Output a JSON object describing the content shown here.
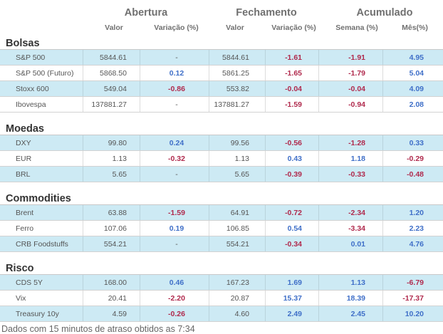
{
  "header": {
    "groups": [
      "Abertura",
      "Fechamento",
      "Acumulado"
    ],
    "columns": [
      "Valor",
      "Variação (%)",
      "Valor",
      "Variação (%)",
      "Semana (%)",
      "Mês(%)"
    ]
  },
  "sections": [
    {
      "title": "Bolsas",
      "rows": [
        {
          "name": "S&P 500",
          "open_value": "5844.61",
          "open_change": "-",
          "close_value": "5844.61",
          "close_change": "-1.61",
          "week": "-1.91",
          "month": "4.95"
        },
        {
          "name": "S&P 500 (Futuro)",
          "open_value": "5868.50",
          "open_change": "0.12",
          "close_value": "5861.25",
          "close_change": "-1.65",
          "week": "-1.79",
          "month": "5.04"
        },
        {
          "name": "Stoxx 600",
          "open_value": "549.04",
          "open_change": "-0.86",
          "close_value": "553.82",
          "close_change": "-0.04",
          "week": "-0.04",
          "month": "4.09"
        },
        {
          "name": "Ibovespa",
          "open_value": "137881.27",
          "open_change": "-",
          "close_value": "137881.27",
          "close_change": "-1.59",
          "week": "-0.94",
          "month": "2.08"
        }
      ]
    },
    {
      "title": "Moedas",
      "rows": [
        {
          "name": "DXY",
          "open_value": "99.80",
          "open_change": "0.24",
          "close_value": "99.56",
          "close_change": "-0.56",
          "week": "-1.28",
          "month": "0.33"
        },
        {
          "name": "EUR",
          "open_value": "1.13",
          "open_change": "-0.32",
          "close_value": "1.13",
          "close_change": "0.43",
          "week": "1.18",
          "month": "-0.29"
        },
        {
          "name": "BRL",
          "open_value": "5.65",
          "open_change": "-",
          "close_value": "5.65",
          "close_change": "-0.39",
          "week": "-0.33",
          "month": "-0.48"
        }
      ]
    },
    {
      "title": "Commodities",
      "rows": [
        {
          "name": "Brent",
          "open_value": "63.88",
          "open_change": "-1.59",
          "close_value": "64.91",
          "close_change": "-0.72",
          "week": "-2.34",
          "month": "1.20"
        },
        {
          "name": "Ferro",
          "open_value": "107.06",
          "open_change": "0.19",
          "close_value": "106.85",
          "close_change": "0.54",
          "week": "-3.34",
          "month": "2.23"
        },
        {
          "name": "CRB Foodstuffs",
          "open_value": "554.21",
          "open_change": "-",
          "close_value": "554.21",
          "close_change": "-0.34",
          "week": "0.01",
          "month": "4.76"
        }
      ]
    },
    {
      "title": "Risco",
      "rows": [
        {
          "name": "CDS 5Y",
          "open_value": "168.00",
          "open_change": "0.46",
          "close_value": "167.23",
          "close_change": "1.69",
          "week": "1.13",
          "month": "-6.79"
        },
        {
          "name": "Vix",
          "open_value": "20.41",
          "open_change": "-2.20",
          "close_value": "20.87",
          "close_change": "15.37",
          "week": "18.39",
          "month": "-17.37"
        },
        {
          "name": "Treasury 10y",
          "open_value": "4.59",
          "open_change": "-0.26",
          "close_value": "4.60",
          "close_change": "2.49",
          "week": "2.45",
          "month": "10.20"
        }
      ]
    }
  ],
  "footer": "Dados com 15 minutos de atraso obtidos as 7:34"
}
